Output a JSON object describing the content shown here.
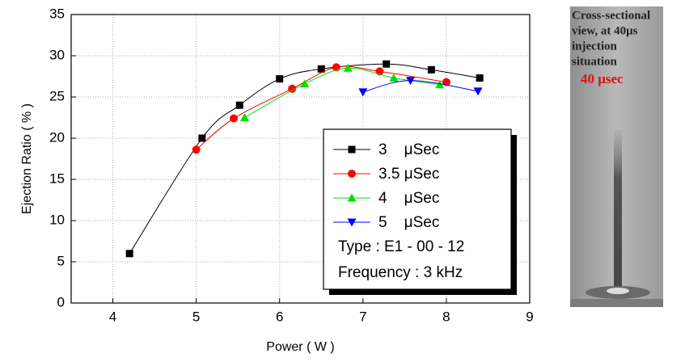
{
  "chart_data": {
    "type": "line",
    "xlabel": "Power ( W )",
    "ylabel": "Ejection Ratio ( % )",
    "xlim": [
      3.5,
      9
    ],
    "xticks": [
      4,
      5,
      6,
      7,
      8,
      9
    ],
    "ylim": [
      0,
      35
    ],
    "yticks": [
      0,
      5,
      10,
      15,
      20,
      25,
      30,
      35
    ],
    "grid": true,
    "legend": "lower right",
    "series": [
      {
        "name": "3    μSec",
        "color": "#000000",
        "marker": "square",
        "x": [
          4.2,
          5.07,
          5.52,
          6.0,
          6.5,
          7.28,
          7.82,
          8.4
        ],
        "values": [
          6,
          20,
          24,
          27.2,
          28.4,
          29,
          28.3,
          27.3
        ]
      },
      {
        "name": "3.5 μSec",
        "color": "#ff0000",
        "marker": "circle",
        "x": [
          5.0,
          5.45,
          6.15,
          6.68,
          7.2,
          8.0
        ],
        "values": [
          18.6,
          22.4,
          26,
          28.6,
          28.1,
          26.8
        ]
      },
      {
        "name": "4    μSec",
        "color": "#00e000",
        "marker": "triangle-up",
        "x": [
          5.58,
          6.3,
          6.82,
          7.37,
          7.92
        ],
        "values": [
          22.5,
          26.6,
          28.5,
          27.3,
          26.5
        ]
      },
      {
        "name": "5    μSec",
        "color": "#0000ff",
        "marker": "triangle-down",
        "x": [
          7.0,
          7.57,
          8.38
        ],
        "values": [
          25.6,
          27,
          25.7
        ]
      }
    ],
    "annotations": [
      "Type : E1 - 00 - 12",
      "Frequency : 3 kHz"
    ]
  },
  "photo": {
    "caption": [
      "Cross-sectional",
      "view, at 40μs",
      "injection",
      "situation"
    ],
    "label": "40 μsec"
  }
}
